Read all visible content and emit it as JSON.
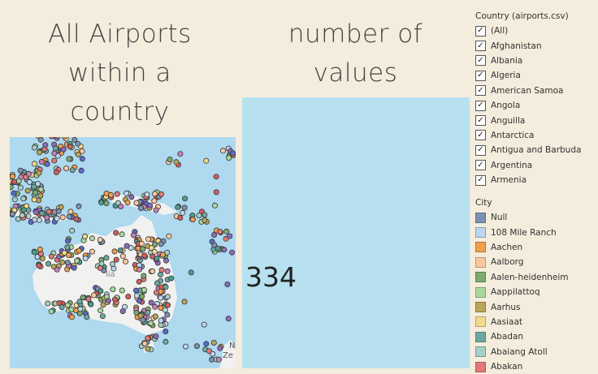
{
  "sheets": {
    "map_title_lines": [
      "All Airports",
      "within  a",
      "country"
    ],
    "kpi_title_lines": [
      "number of",
      "values"
    ]
  },
  "kpi": {
    "value": "334",
    "color": "#b8e1f0"
  },
  "map": {
    "land_label": "lia",
    "corner_label": "N",
    "corner_label_2": "Ze",
    "ocean_color": "#aed9ef",
    "land_color": "#f1f1ef"
  },
  "country_filter": {
    "title": "Country (airports.csv)",
    "items": [
      {
        "label": "(All)",
        "checked": true
      },
      {
        "label": "Afghanistan",
        "checked": true
      },
      {
        "label": "Albania",
        "checked": true
      },
      {
        "label": "Algeria",
        "checked": true
      },
      {
        "label": "American Samoa",
        "checked": true
      },
      {
        "label": "Angola",
        "checked": true
      },
      {
        "label": "Anguilla",
        "checked": true
      },
      {
        "label": "Antarctica",
        "checked": true
      },
      {
        "label": "Antigua and Barbuda",
        "checked": true
      },
      {
        "label": "Argentina",
        "checked": true
      },
      {
        "label": "Armenia",
        "checked": true
      }
    ]
  },
  "city_legend": {
    "title": "City",
    "items": [
      {
        "label": "Null",
        "color": "#7a93b3"
      },
      {
        "label": "108 Mile Ranch",
        "color": "#bcd6ee"
      },
      {
        "label": "Aachen",
        "color": "#f0a04b"
      },
      {
        "label": "Aalborg",
        "color": "#f8c9a0"
      },
      {
        "label": "Aalen-heidenheim",
        "color": "#7bab6e"
      },
      {
        "label": "Aappilattoq",
        "color": "#a9d89c"
      },
      {
        "label": "Aarhus",
        "color": "#b9a659"
      },
      {
        "label": "Aasiaat",
        "color": "#f2d98c"
      },
      {
        "label": "Abadan",
        "color": "#6fa8a3"
      },
      {
        "label": "Abaiang Atoll",
        "color": "#a6cfc8"
      },
      {
        "label": "Abakan",
        "color": "#e2787a"
      }
    ]
  }
}
